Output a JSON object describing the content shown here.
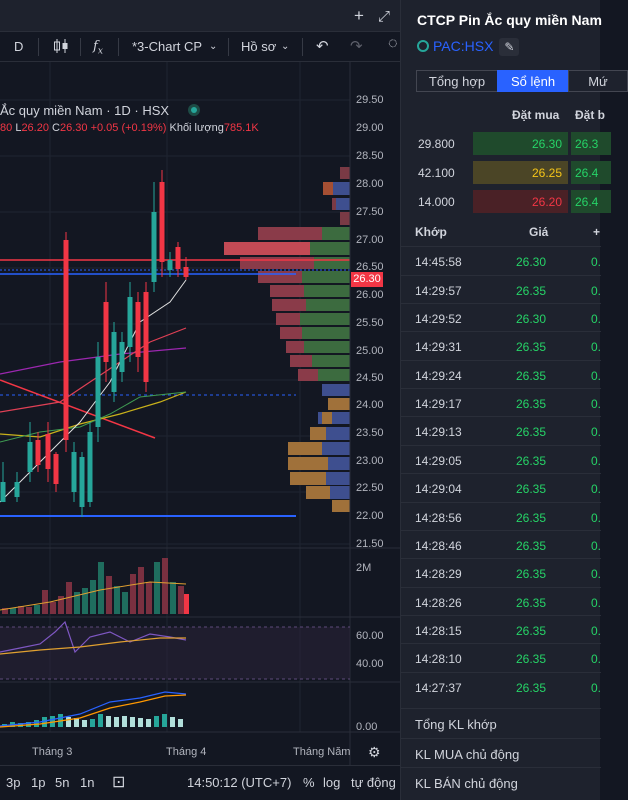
{
  "toolbar": {
    "symbol_interval": "D",
    "candle_icon": "candlestick-icon",
    "indicator_icon": "fx-icon",
    "layout_label": "*3-Chart CP",
    "profile_label": "Hồ sơ",
    "undo_icon": "undo-icon",
    "redo_icon": "redo-icon"
  },
  "topbar": {
    "plus": "+",
    "expand": "⤢"
  },
  "legend": {
    "title": "Ắc quy miền Nam · 1D · HSX",
    "o_tail": "80",
    "l_label": "L",
    "l_value": "26.20",
    "c_label": "C",
    "c_value": "26.30",
    "change": "+0.05 (+0.19%)",
    "volume_label": "Khối lượng",
    "volume_value": "785.1K"
  },
  "price_axis": [
    "29.50",
    "29.00",
    "28.50",
    "28.00",
    "27.50",
    "27.00",
    "26.50",
    "26.00",
    "25.50",
    "25.00",
    "24.50",
    "24.00",
    "23.50",
    "23.00",
    "22.50",
    "22.00",
    "21.50"
  ],
  "current_price": "26.30",
  "volume_axis": "2M",
  "rsi_axis": [
    "60.00",
    "40.00"
  ],
  "macd_axis": "0.00",
  "time_axis": [
    "Tháng 3",
    "Tháng 4",
    "Tháng Năm"
  ],
  "bottom_bar": {
    "tf": [
      "3p",
      "1p",
      "5n",
      "1n"
    ],
    "clock": "14:50:12 (UTC+7)",
    "pct": "%",
    "log": "log",
    "auto": "tự động"
  },
  "colors": {
    "up": "#26a69a",
    "down": "#f23645",
    "accent": "#2962ff"
  },
  "right": {
    "stock_name": "CTCP Pin Ắc quy miền Nam",
    "ticker": "PAC:HSX",
    "tabs": [
      "Tổng hợp",
      "Sổ lệnh",
      "Mứ"
    ],
    "ob_headers": [
      "Đặt mua",
      "Đặt b"
    ],
    "orderbook": [
      {
        "vol": "29.800",
        "bid": "26.30",
        "ask": "26.3"
      },
      {
        "vol": "42.100",
        "bid": "26.25",
        "ask": "26.4"
      },
      {
        "vol": "14.000",
        "bid": "26.20",
        "ask": "26.4"
      }
    ],
    "trades_headers": [
      "Khớp",
      "Giá",
      "+"
    ],
    "trades": [
      {
        "time": "14:45:58",
        "price": "26.30",
        "vol": "0."
      },
      {
        "time": "14:29:57",
        "price": "26.35",
        "vol": "0."
      },
      {
        "time": "14:29:52",
        "price": "26.30",
        "vol": "0."
      },
      {
        "time": "14:29:31",
        "price": "26.35",
        "vol": "0."
      },
      {
        "time": "14:29:24",
        "price": "26.35",
        "vol": "0."
      },
      {
        "time": "14:29:17",
        "price": "26.35",
        "vol": "0."
      },
      {
        "time": "14:29:13",
        "price": "26.35",
        "vol": "0."
      },
      {
        "time": "14:29:05",
        "price": "26.35",
        "vol": "0."
      },
      {
        "time": "14:29:04",
        "price": "26.35",
        "vol": "0."
      },
      {
        "time": "14:28:56",
        "price": "26.35",
        "vol": "0."
      },
      {
        "time": "14:28:46",
        "price": "26.35",
        "vol": "0."
      },
      {
        "time": "14:28:29",
        "price": "26.35",
        "vol": "0."
      },
      {
        "time": "14:28:26",
        "price": "26.35",
        "vol": "0."
      },
      {
        "time": "14:28:15",
        "price": "26.35",
        "vol": "0."
      },
      {
        "time": "14:28:10",
        "price": "26.35",
        "vol": "0."
      },
      {
        "time": "14:27:37",
        "price": "26.35",
        "vol": "0."
      }
    ],
    "summary": [
      "Tổng KL khớp",
      "KL MUA chủ động",
      "KL BÁN chủ động"
    ]
  }
}
